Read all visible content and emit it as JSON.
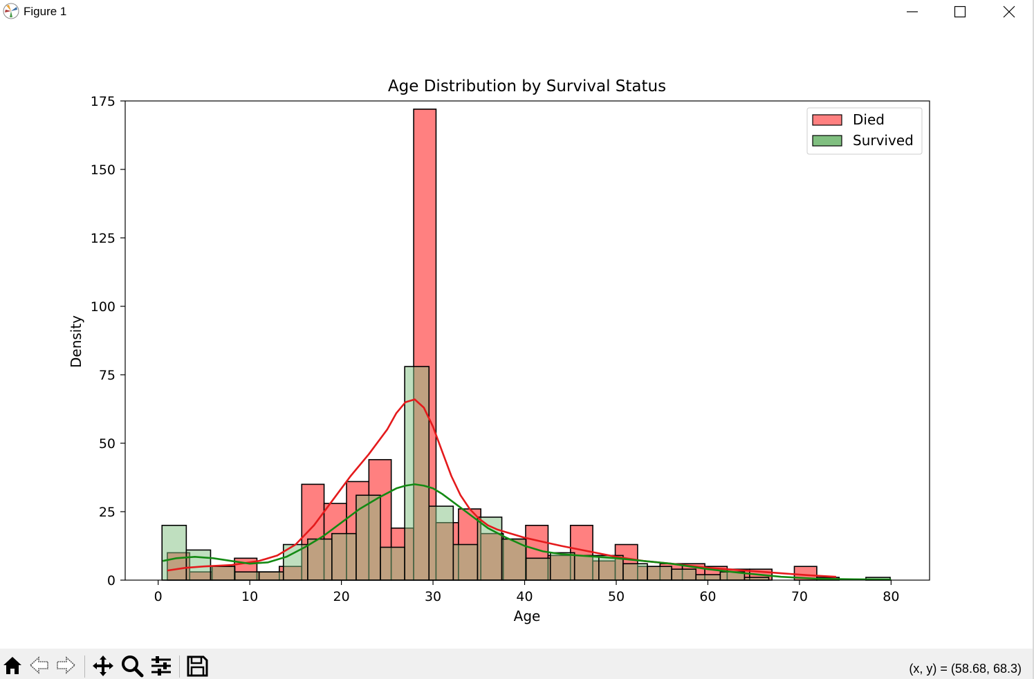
{
  "window": {
    "title": "Figure 1",
    "buttons": [
      "minimize",
      "maximize",
      "close"
    ]
  },
  "toolbar": {
    "buttons": [
      "home-icon",
      "back-icon",
      "forward-icon",
      "pan-icon",
      "zoom-icon",
      "configure-icon",
      "save-icon"
    ],
    "coordinates_text": "(x, y) = (58.68, 68.3)"
  },
  "colors": {
    "died_fill": "#ff8080",
    "survived_fill": "#80bf80",
    "overlap_fill": "#808040",
    "died_line": "#e41a1c",
    "survived_line": "#138a13"
  },
  "chart_data": {
    "type": "bar",
    "title": "Age Distribution by Survival Status",
    "xlabel": "Age",
    "ylabel": "Density",
    "xlim": [
      -3.6,
      84.2
    ],
    "ylim": [
      0,
      175
    ],
    "xticks": [
      0,
      10,
      20,
      30,
      40,
      50,
      60,
      70,
      80
    ],
    "yticks": [
      0,
      25,
      50,
      75,
      100,
      125,
      150,
      175
    ],
    "grid": false,
    "legend": "top-right",
    "series": [
      {
        "name": "Died",
        "color": "#ff8080",
        "edges": [
          1.0,
          3.44,
          5.89,
          8.33,
          10.78,
          13.22,
          15.67,
          18.11,
          20.56,
          23.0,
          25.44,
          27.89,
          30.33,
          32.78,
          35.22,
          37.67,
          40.11,
          42.56,
          45.0,
          47.44,
          49.89,
          52.33,
          54.78,
          57.22,
          59.67,
          62.11,
          64.56,
          67.0,
          69.44,
          71.89,
          74.33
        ],
        "values": [
          10,
          3,
          5,
          8,
          3,
          5,
          35,
          28,
          36,
          44,
          19,
          172,
          21,
          26,
          17,
          15,
          20,
          9,
          20,
          7,
          13,
          5,
          6,
          6,
          5,
          4,
          4,
          0,
          5,
          1
        ]
      },
      {
        "name": "Survived",
        "color": "#80bf80",
        "edges": [
          0.42,
          3.07,
          5.72,
          8.37,
          11.02,
          13.67,
          16.32,
          18.96,
          21.61,
          24.26,
          26.91,
          29.56,
          32.21,
          34.86,
          37.51,
          40.16,
          42.81,
          45.45,
          48.1,
          50.75,
          53.4,
          56.05,
          58.7,
          61.35,
          64.0,
          66.65,
          69.3,
          71.95,
          74.6,
          77.25,
          79.9
        ],
        "values": [
          20,
          11,
          5,
          3,
          3,
          13,
          15,
          17,
          31,
          12,
          78,
          27,
          13,
          23,
          15,
          8,
          10,
          9,
          9,
          6,
          5,
          4,
          2,
          3,
          1,
          0,
          0,
          0,
          0,
          1
        ]
      }
    ],
    "kde": [
      {
        "name": "Died",
        "color": "#e41a1c",
        "x": [
          1,
          3,
          5,
          8,
          11,
          13,
          15,
          17,
          19,
          21,
          23,
          25,
          26,
          27,
          28,
          29,
          30,
          31,
          32,
          33,
          34,
          35,
          36,
          37,
          38,
          40,
          42,
          44,
          47,
          50,
          53,
          56,
          60,
          64,
          68,
          71,
          74
        ],
        "y": [
          3.5,
          4.5,
          5,
          5.5,
          7,
          9,
          13,
          20,
          29,
          38,
          46,
          55,
          61,
          65,
          66,
          63,
          56,
          47,
          38,
          31,
          26,
          22.5,
          20,
          18.5,
          17.5,
          15.5,
          14,
          12.5,
          10.5,
          8.5,
          7,
          6,
          4.5,
          3.5,
          2.5,
          1.8,
          1.2
        ]
      },
      {
        "name": "Survived",
        "color": "#138a13",
        "x": [
          0.5,
          2,
          4,
          6,
          8,
          10,
          12,
          14,
          16,
          18,
          20,
          22,
          24,
          26,
          27,
          28,
          29,
          30,
          31,
          32,
          33,
          34,
          35,
          36,
          38,
          40,
          42,
          44,
          46,
          48,
          50,
          53,
          56,
          60,
          64,
          68,
          72,
          76,
          80
        ],
        "y": [
          7,
          8,
          8.5,
          8,
          7,
          6,
          6.5,
          8.5,
          12,
          16,
          21,
          26,
          30,
          33.5,
          34.5,
          35,
          34.5,
          33.5,
          31.5,
          29,
          26.5,
          24,
          21.5,
          19,
          15.5,
          12.5,
          10.5,
          9.5,
          9,
          8.5,
          8,
          7,
          6,
          4,
          2.5,
          1.2,
          0.5,
          0.3,
          0.2
        ]
      }
    ]
  }
}
